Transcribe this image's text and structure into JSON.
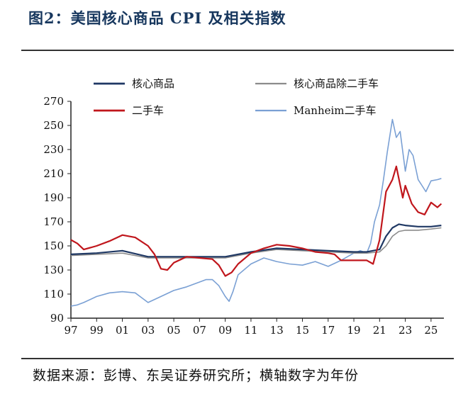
{
  "header": {
    "title": "图2：美国核心商品 CPI 及相关指数"
  },
  "footer": {
    "source": "数据来源：彭博、东吴证券研究所；横轴数字为年份"
  },
  "chart_data": {
    "type": "line",
    "title": "",
    "xlabel": "",
    "ylabel": "",
    "xlim": [
      1997,
      2026
    ],
    "ylim": [
      90,
      270
    ],
    "x_ticks": [
      "97",
      "99",
      "01",
      "03",
      "05",
      "07",
      "09",
      "11",
      "13",
      "15",
      "17",
      "19",
      "21",
      "23",
      "25"
    ],
    "y_ticks": [
      90,
      110,
      130,
      150,
      170,
      190,
      210,
      230,
      250,
      270
    ],
    "grid": false,
    "legend": "top",
    "series": [
      {
        "name": "核心商品",
        "color": "#1f3864",
        "width": 2.2,
        "x": [
          1997,
          1999,
          2001,
          2003,
          2005,
          2007,
          2009,
          2011,
          2013,
          2015,
          2017,
          2019,
          2020,
          2021,
          2021.5,
          2022,
          2022.5,
          2023,
          2024,
          2025,
          2025.8
        ],
        "values": [
          143,
          144,
          146,
          141,
          141,
          141,
          141,
          145,
          148,
          147,
          146,
          145,
          145,
          147,
          158,
          165,
          168,
          167,
          166,
          166,
          167
        ]
      },
      {
        "name": "核心商品除二手车",
        "color": "#8c8c8c",
        "width": 1.6,
        "x": [
          1997,
          1999,
          2001,
          2003,
          2005,
          2007,
          2009,
          2011,
          2013,
          2015,
          2017,
          2019,
          2020,
          2021,
          2021.5,
          2022,
          2022.5,
          2023,
          2024,
          2025,
          2025.8
        ],
        "values": [
          142,
          143,
          144,
          140,
          140,
          140,
          140,
          144,
          147,
          146,
          145,
          144,
          144,
          145,
          150,
          158,
          162,
          163,
          163,
          164,
          165
        ]
      },
      {
        "name": "二手车",
        "color": "#c0161c",
        "width": 2.2,
        "x": [
          1997,
          1997.5,
          1998,
          1999,
          2000,
          2001,
          2002,
          2003,
          2003.5,
          2004,
          2004.5,
          2005,
          2006,
          2007,
          2008,
          2008.5,
          2009,
          2009.5,
          2010,
          2011,
          2012,
          2013,
          2014,
          2015,
          2016,
          2017,
          2017.5,
          2018,
          2019,
          2020,
          2020.5,
          2021,
          2021.5,
          2022,
          2022.3,
          2022.8,
          2023,
          2023.5,
          2024,
          2024.5,
          2025,
          2025.5,
          2025.8
        ],
        "values": [
          155,
          152,
          147,
          150,
          154,
          159,
          157,
          150,
          143,
          131,
          130,
          136,
          141,
          140,
          139,
          134,
          125,
          128,
          135,
          144,
          148,
          151,
          150,
          148,
          145,
          144,
          143,
          138,
          138,
          138,
          135,
          155,
          195,
          205,
          216,
          190,
          200,
          185,
          178,
          176,
          186,
          182,
          185
        ]
      },
      {
        "name": "Manheim二手车",
        "color": "#7aa0d4",
        "width": 1.6,
        "x": [
          1997,
          1997.5,
          1998,
          1999,
          2000,
          2001,
          2002,
          2002.5,
          2003,
          2004,
          2005,
          2006,
          2007,
          2007.5,
          2008,
          2008.5,
          2009,
          2009.3,
          2009.6,
          2010,
          2011,
          2012,
          2013,
          2014,
          2015,
          2016,
          2016.5,
          2017,
          2018,
          2019,
          2019.5,
          2020,
          2020.3,
          2020.6,
          2021,
          2021.3,
          2021.6,
          2022,
          2022.3,
          2022.6,
          2023,
          2023.3,
          2023.6,
          2024,
          2024.3,
          2024.6,
          2025,
          2025.5,
          2025.8
        ],
        "values": [
          100,
          101,
          103,
          108,
          111,
          112,
          111,
          107,
          103,
          108,
          113,
          116,
          120,
          122,
          122,
          117,
          108,
          104,
          112,
          126,
          135,
          140,
          137,
          135,
          134,
          137,
          135,
          133,
          138,
          144,
          146,
          144,
          152,
          170,
          184,
          205,
          228,
          255,
          240,
          245,
          212,
          230,
          225,
          205,
          200,
          195,
          204,
          205,
          206
        ]
      }
    ]
  }
}
